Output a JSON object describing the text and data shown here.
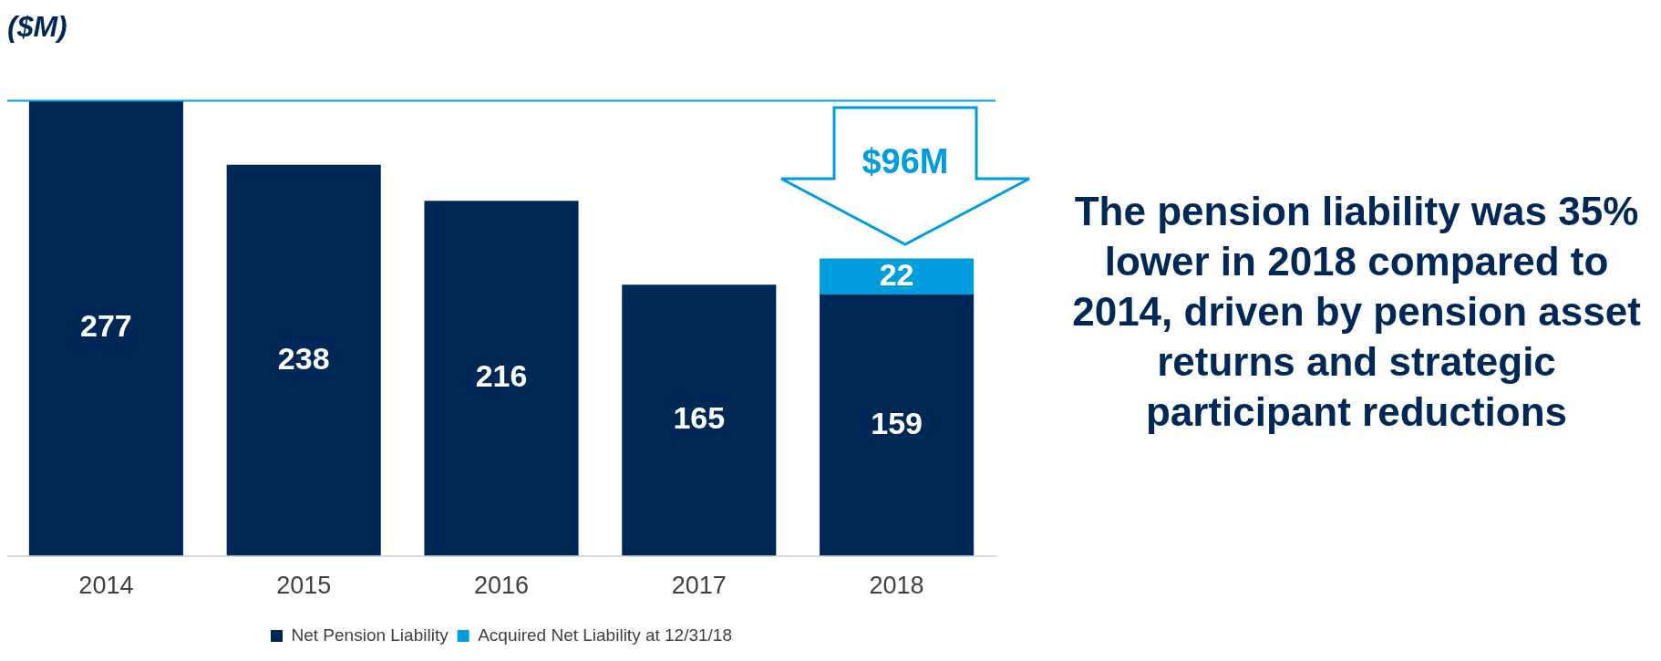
{
  "chart_data": {
    "type": "bar",
    "title": "($M)",
    "categories": [
      "2014",
      "2015",
      "2016",
      "2017",
      "2018"
    ],
    "stacked": true,
    "series": [
      {
        "name": "Net Pension Liability",
        "color": "#002856",
        "values": [
          277,
          238,
          216,
          165,
          159
        ]
      },
      {
        "name": "Acquired Net Liability at 12/31/18",
        "color": "#009ddc",
        "values": [
          null,
          null,
          null,
          null,
          22
        ]
      }
    ],
    "data_labels": true,
    "ref_lines": [
      {
        "axis": "y",
        "value": 277,
        "color": "#009ddc"
      }
    ],
    "legend": "bottom",
    "grid": false,
    "annotations": [
      "$96M",
      "The pension liability was 35% lower in 2018 compared to 2014, driven by pension asset returns and strategic participant reductions"
    ]
  }
}
